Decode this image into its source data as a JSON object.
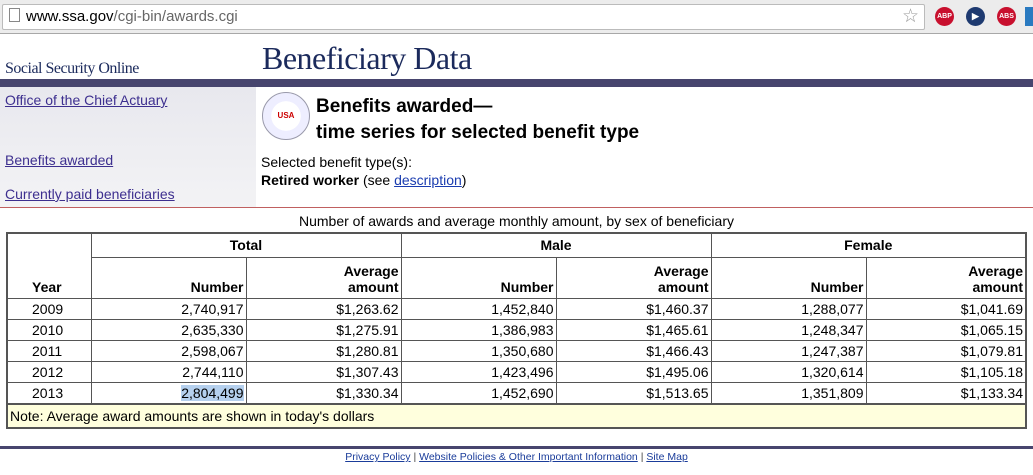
{
  "browser": {
    "url_host": "www.ssa.gov",
    "url_path": "/cgi-bin/awards.cgi",
    "extensions": [
      {
        "name": "adblock-plus",
        "label": "ABP",
        "color": "#c8102e"
      },
      {
        "name": "media",
        "label": "▶",
        "color": "#1e3a70"
      },
      {
        "name": "adblock",
        "label": "ABS",
        "color": "#c8102e"
      }
    ]
  },
  "header": {
    "site_name": "Social Security Online",
    "title": "Beneficiary Data"
  },
  "sidebar": {
    "items": [
      {
        "label": "Office of the Chief Actuary"
      },
      {
        "label": "Benefits awarded"
      },
      {
        "label": "Currently paid beneficiaries"
      }
    ]
  },
  "main": {
    "heading_line1": "Benefits awarded—",
    "heading_line2": "time series for selected benefit type",
    "seal_text": "USA",
    "selected_label": "Selected benefit type(s):",
    "selected_value": "Retired worker",
    "see_prefix": "(see ",
    "description_link": "description",
    "see_suffix": ")"
  },
  "table": {
    "caption": "Number of awards and average monthly amount, by sex of beneficiary",
    "groups": [
      "Total",
      "Male",
      "Female"
    ],
    "year_header": "Year",
    "number_header": "Number",
    "average_header": "Average amount",
    "rows": [
      [
        "2009",
        "2,740,917",
        "$1,263.62",
        "1,452,840",
        "$1,460.37",
        "1,288,077",
        "$1,041.69"
      ],
      [
        "2010",
        "2,635,330",
        "$1,275.91",
        "1,386,983",
        "$1,465.61",
        "1,248,347",
        "$1,065.15"
      ],
      [
        "2011",
        "2,598,067",
        "$1,280.81",
        "1,350,680",
        "$1,466.43",
        "1,247,387",
        "$1,079.81"
      ],
      [
        "2012",
        "2,744,110",
        "$1,307.43",
        "1,423,496",
        "$1,495.06",
        "1,320,614",
        "$1,105.18"
      ],
      [
        "2013",
        "2,804,499",
        "$1,330.34",
        "1,452,690",
        "$1,513.65",
        "1,351,809",
        "$1,133.34"
      ]
    ],
    "note": "Note: Average award amounts are shown in today's dollars"
  },
  "footer": {
    "links": [
      "Privacy Policy",
      "Website Policies & Other Important Information",
      "Site Map"
    ],
    "separator": " | "
  }
}
